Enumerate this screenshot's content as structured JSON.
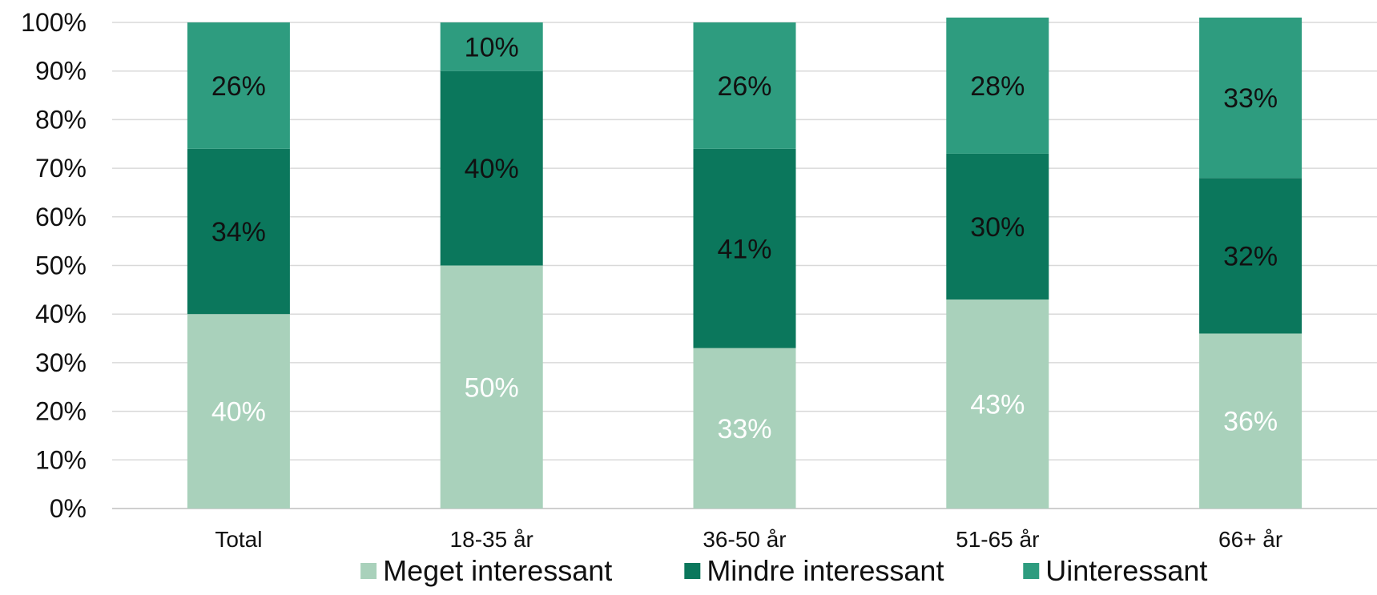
{
  "chart_data": {
    "type": "bar",
    "stacked": true,
    "percent_stacked": true,
    "title": "",
    "xlabel": "",
    "ylabel": "",
    "ylim": [
      0,
      100
    ],
    "y_ticks": [
      "0%",
      "10%",
      "20%",
      "30%",
      "40%",
      "50%",
      "60%",
      "70%",
      "80%",
      "90%",
      "100%"
    ],
    "grid": true,
    "legend_position": "bottom",
    "categories": [
      "Total",
      "18-35 år",
      "36-50 år",
      "51-65 år",
      "66+ år"
    ],
    "series": [
      {
        "name": "Meget interessant",
        "color": "#a9d1bb",
        "label_color": "#ffffff",
        "values": [
          40,
          50,
          33,
          43,
          36
        ],
        "labels": [
          "40%",
          "50%",
          "33%",
          "43%",
          "36%"
        ]
      },
      {
        "name": "Mindre interessant",
        "color": "#0b775c",
        "label_color": "#111111",
        "values": [
          34,
          40,
          41,
          30,
          32
        ],
        "labels": [
          "34%",
          "40%",
          "41%",
          "30%",
          "32%"
        ]
      },
      {
        "name": "Uinteressant",
        "color": "#2e9c7f",
        "label_color": "#111111",
        "values": [
          26,
          10,
          26,
          28,
          33
        ],
        "labels": [
          "26%",
          "10%",
          "26%",
          "28%",
          "33%"
        ]
      }
    ]
  }
}
